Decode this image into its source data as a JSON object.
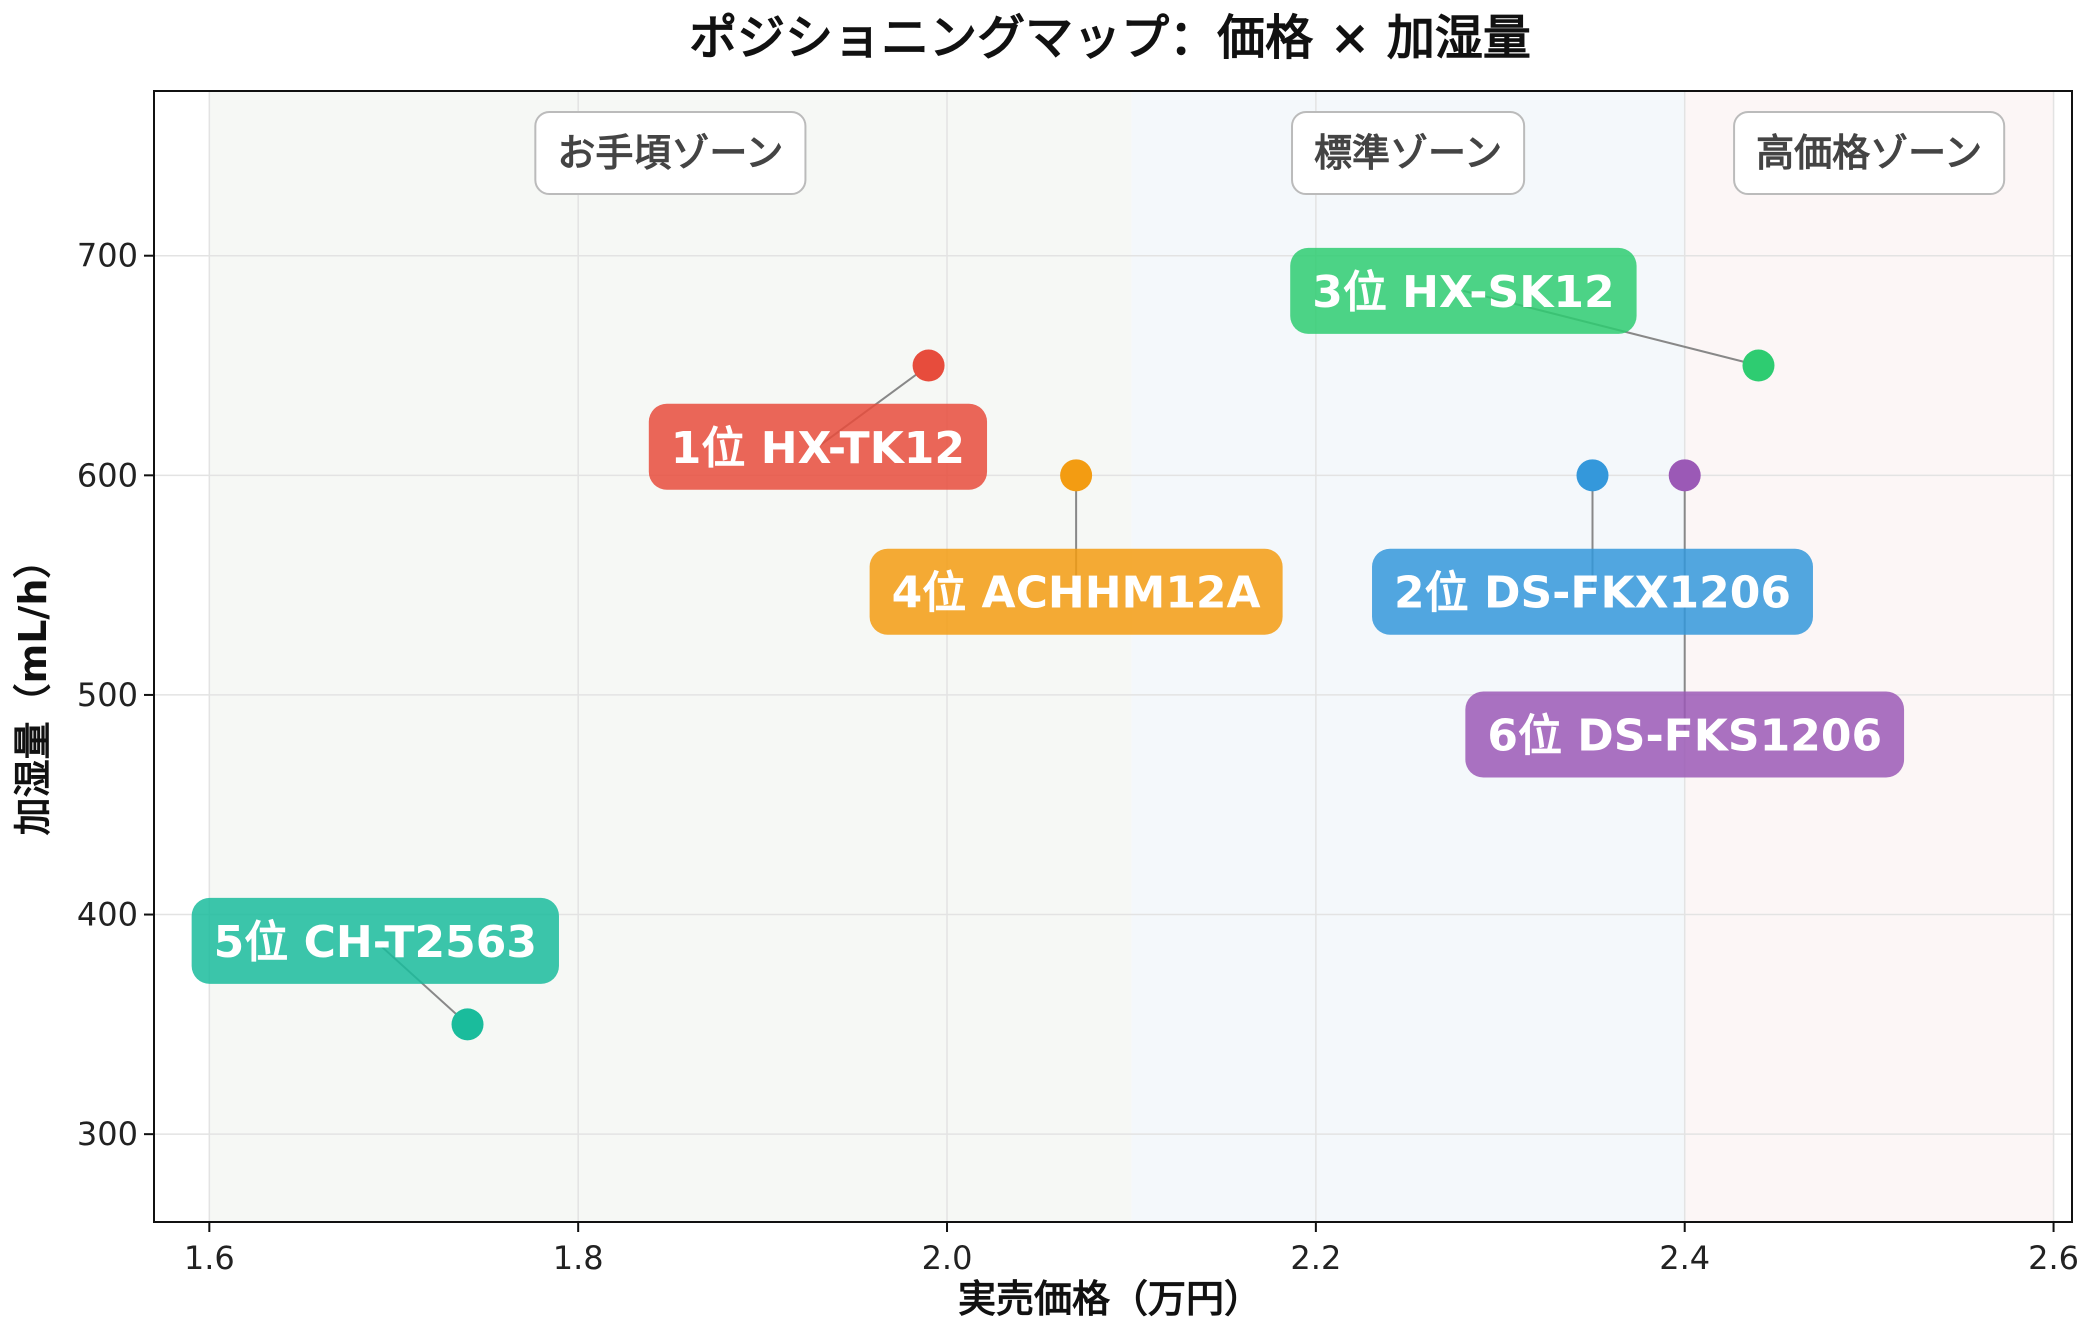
{
  "chart_data": {
    "type": "scatter",
    "title": "ポジショニングマップ：価格 × 加湿量",
    "xlabel": "実売価格（万円）",
    "ylabel": "加湿量（mL/h）",
    "xlim": [
      1.57,
      2.61
    ],
    "ylim": [
      260,
      775
    ],
    "xticks": [
      "1.6",
      "1.8",
      "2.0",
      "2.2",
      "2.4",
      "2.6"
    ],
    "yticks": [
      "300",
      "400",
      "500",
      "600",
      "700"
    ],
    "grid": true,
    "zones": [
      {
        "label": "お手頃ゾーン",
        "x_range": [
          1.6,
          2.1
        ],
        "color": "#f6f8f5"
      },
      {
        "label": "標準ゾーン",
        "x_range": [
          2.1,
          2.4
        ],
        "color": "#f4f8fb"
      },
      {
        "label": "高価格ゾーン",
        "x_range": [
          2.4,
          2.6
        ],
        "color": "#fcf6f6"
      }
    ],
    "points": [
      {
        "label": "1位 HX-TK12",
        "x": 1.99,
        "y": 650,
        "color": "#e74c3c",
        "label_x": 1.93,
        "label_y": 613
      },
      {
        "label": "2位 DS-FKX1206",
        "x": 2.35,
        "y": 600,
        "color": "#3498db",
        "label_x": 2.35,
        "label_y": 547
      },
      {
        "label": "3位 HX-SK12",
        "x": 2.44,
        "y": 650,
        "color": "#2ecc71",
        "label_x": 2.28,
        "label_y": 684
      },
      {
        "label": "4位 ACHHM12A",
        "x": 2.07,
        "y": 600,
        "color": "#f39c12",
        "label_x": 2.07,
        "label_y": 547
      },
      {
        "label": "5位 CH-T2563",
        "x": 1.74,
        "y": 350,
        "color": "#1abc9c",
        "label_x": 1.69,
        "label_y": 388
      },
      {
        "label": "6位 DS-FKS1206",
        "x": 2.4,
        "y": 600,
        "color": "#9b59b6",
        "label_x": 2.4,
        "label_y": 482
      }
    ]
  }
}
